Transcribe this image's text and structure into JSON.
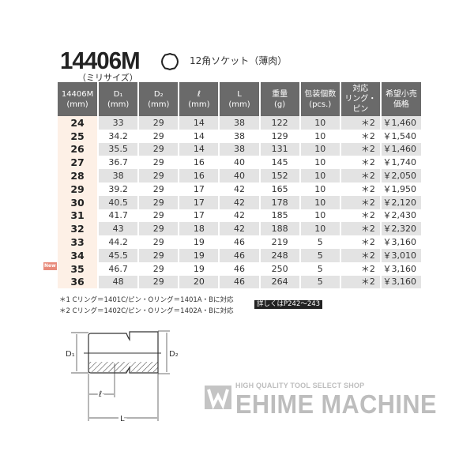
{
  "product": {
    "code": "14406M",
    "subtitle": "（ミリサイズ）",
    "description": "12角ソケット（薄肉）",
    "icon": "12-point-socket-icon"
  },
  "table": {
    "headers": [
      [
        "14406M",
        "(mm)"
      ],
      [
        "D₁",
        "(mm)"
      ],
      [
        "D₂",
        "(mm)"
      ],
      [
        "ℓ",
        "(mm)"
      ],
      [
        "L",
        "(mm)"
      ],
      [
        "重量",
        "(g)"
      ],
      [
        "包装個数",
        "(pcs.)"
      ],
      [
        "対応",
        "リング・ピン"
      ],
      [
        "希望小売",
        "価格"
      ]
    ],
    "rows": [
      [
        "24",
        "33",
        "29",
        "14",
        "38",
        "122",
        "10",
        "＊2",
        "￥1,460"
      ],
      [
        "25",
        "34.2",
        "29",
        "14",
        "38",
        "129",
        "10",
        "＊2",
        "￥1,540"
      ],
      [
        "26",
        "35.5",
        "29",
        "14",
        "38",
        "131",
        "10",
        "＊2",
        "￥1,460"
      ],
      [
        "27",
        "36.7",
        "29",
        "16",
        "40",
        "145",
        "10",
        "＊2",
        "￥1,740"
      ],
      [
        "28",
        "38",
        "29",
        "16",
        "40",
        "152",
        "10",
        "＊2",
        "￥2,050"
      ],
      [
        "29",
        "39.2",
        "29",
        "17",
        "42",
        "165",
        "10",
        "＊2",
        "￥1,950"
      ],
      [
        "30",
        "40.5",
        "29",
        "17",
        "42",
        "178",
        "10",
        "＊2",
        "￥2,120"
      ],
      [
        "31",
        "41.7",
        "29",
        "17",
        "42",
        "185",
        "10",
        "＊2",
        "￥2,430"
      ],
      [
        "32",
        "43",
        "29",
        "18",
        "42",
        "188",
        "10",
        "＊2",
        "￥2,320"
      ],
      [
        "33",
        "44.2",
        "29",
        "19",
        "46",
        "219",
        "5",
        "＊2",
        "￥3,160"
      ],
      [
        "34",
        "45.5",
        "29",
        "19",
        "46",
        "248",
        "5",
        "＊2",
        "￥3,010"
      ],
      [
        "35",
        "46.7",
        "29",
        "19",
        "46",
        "250",
        "5",
        "＊2",
        "￥3,160"
      ],
      [
        "36",
        "48",
        "29",
        "20",
        "46",
        "264",
        "5",
        "＊2",
        "￥3,160"
      ]
    ]
  },
  "new_badge": "New",
  "notes": [
    "＊1 Cリング＝1401C/ピン・Oリング＝1401A・Bに対応",
    "＊2 Cリング＝1402C/ピン・Oリング＝1402A・Bに対応"
  ],
  "reference": "詳しくはP242～243",
  "diagram": {
    "labels": {
      "d1": "D₁",
      "d2": "D₂",
      "l_small": "ℓ",
      "l_big": "L"
    }
  },
  "watermark": {
    "tagline": "HIGH QUALITY TOOL SELECT SHOP",
    "name": "EHIME MACHINE"
  }
}
